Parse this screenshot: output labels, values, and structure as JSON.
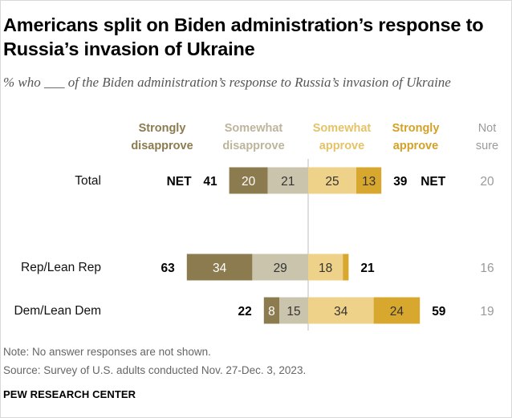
{
  "header": {
    "title": "Americans split on Biden administration’s response to Russia’s invasion of Ukraine",
    "subtitle": "% who ___ of the Biden administration’s response to Russia’s invasion of Ukraine"
  },
  "footer": {
    "note": "Note: No answer responses are not shown.",
    "source": "Source: Survey of U.S. adults conducted Nov. 27-Dec. 3, 2023.",
    "brand": "PEW RESEARCH CENTER"
  },
  "chart_data": {
    "type": "bar",
    "orientation": "horizontal-diverging",
    "categories": [
      "Total",
      "Rep/Lean Rep",
      "Dem/Lean Dem"
    ],
    "series": [
      {
        "name": "Strongly disapprove",
        "values": [
          20,
          34,
          8
        ],
        "color": "#8b7b4e",
        "label_color": "#8b7b4e",
        "side": "left"
      },
      {
        "name": "Somewhat disapprove",
        "values": [
          21,
          29,
          15
        ],
        "color": "#cbc4ad",
        "label_color": "#bdb59b",
        "side": "left"
      },
      {
        "name": "Somewhat approve",
        "values": [
          25,
          18,
          34
        ],
        "color": "#efd28a",
        "label_color": "#e4c368",
        "side": "right"
      },
      {
        "name": "Strongly approve",
        "values": [
          13,
          3,
          24
        ],
        "color": "#d8a72e",
        "label_color": "#d4a127",
        "side": "right"
      }
    ],
    "segment_labels": [
      [
        "20",
        "21",
        "25",
        "13"
      ],
      [
        "34",
        "29",
        "18",
        ""
      ],
      [
        "8",
        "15",
        "34",
        "24"
      ]
    ],
    "net_disapprove": [
      "41",
      "63",
      "22"
    ],
    "net_approve": [
      "39",
      "21",
      "59"
    ],
    "net_label": "NET",
    "not_sure_header": "Not sure",
    "not_sure": [
      "20",
      "16",
      "19"
    ],
    "legend_placement": "top"
  }
}
